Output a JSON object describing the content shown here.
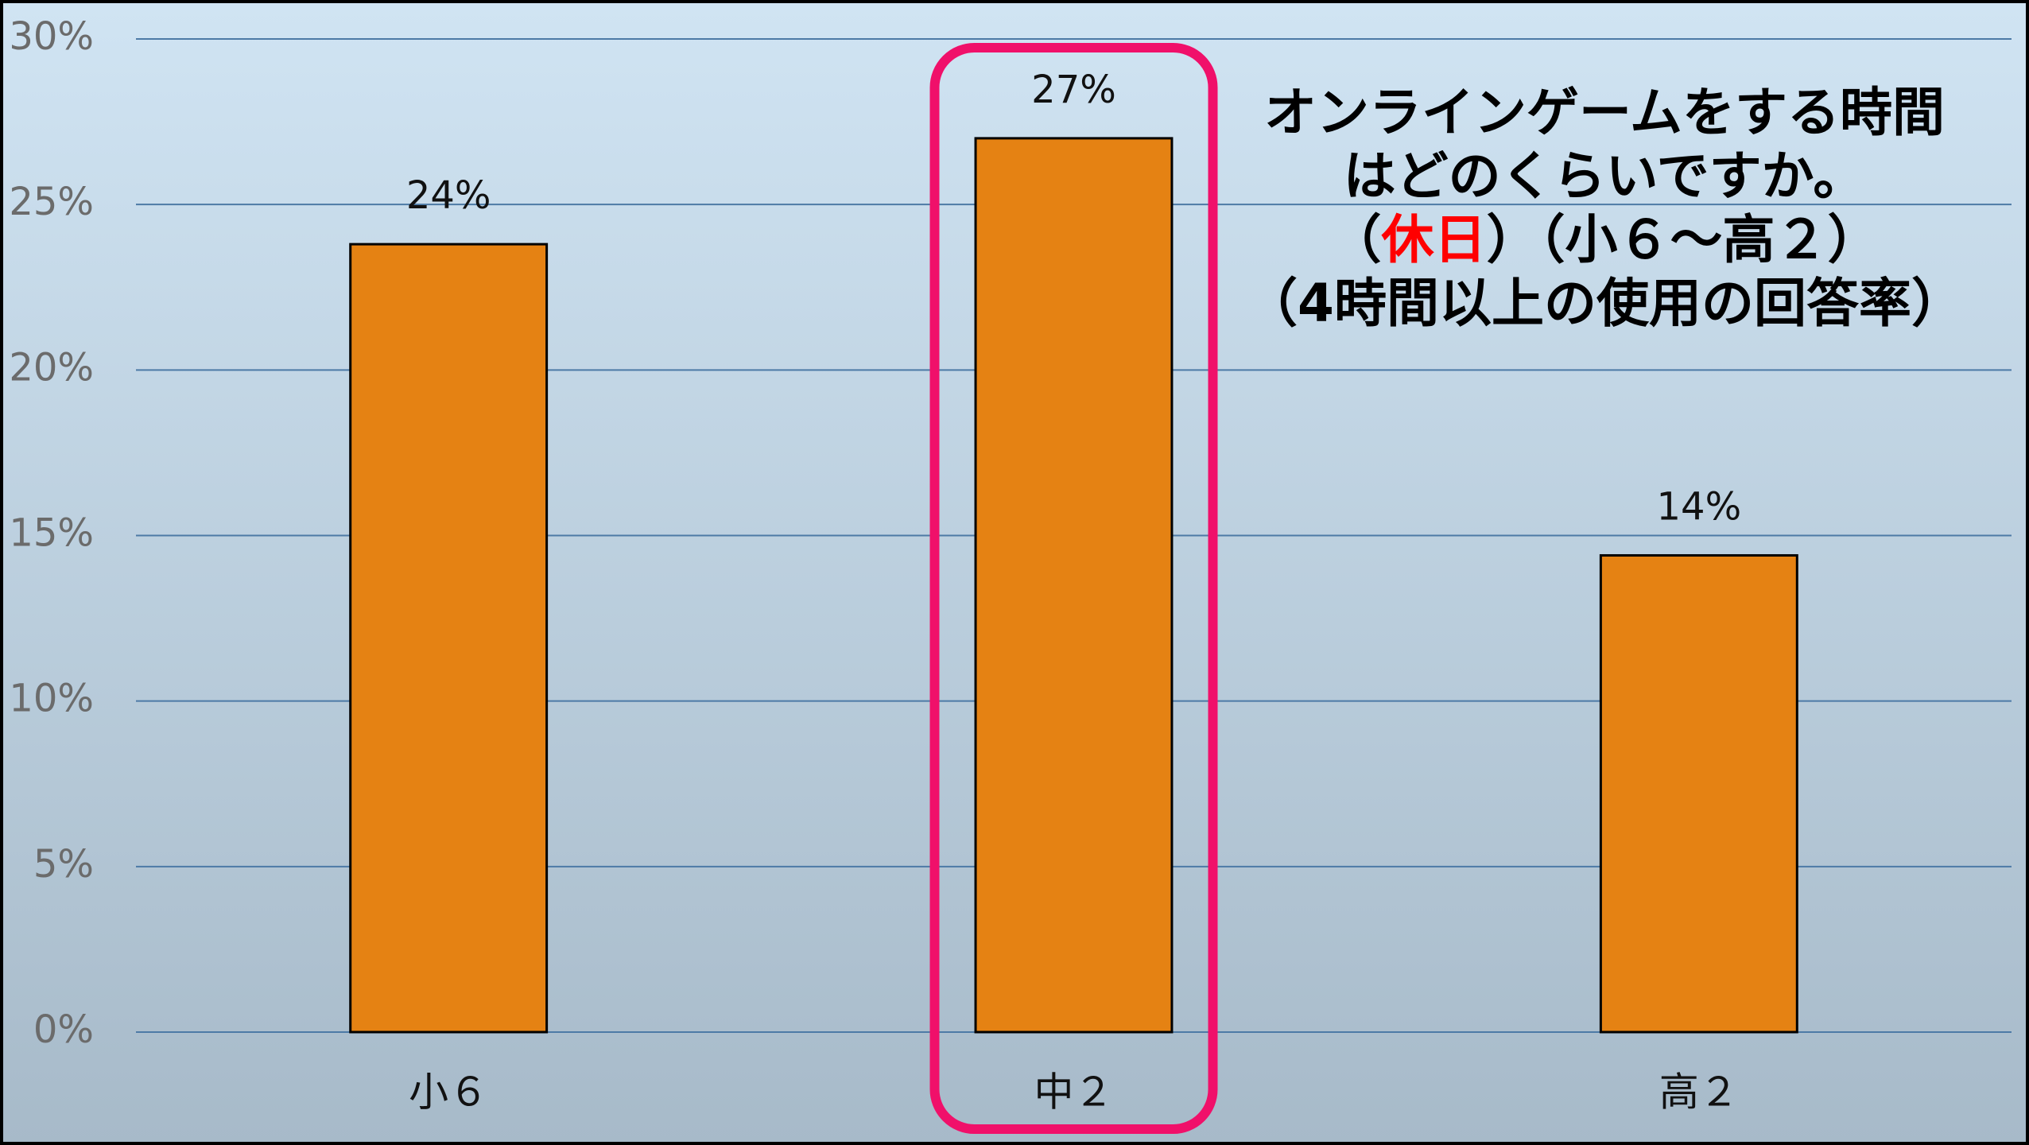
{
  "chart_data": {
    "type": "bar",
    "title": [
      "オンラインゲームをする時間",
      "はどのくらいですか。"
    ],
    "subtitle": [
      {
        "text": "（"
      },
      {
        "text": "休日",
        "color": "#ff0000"
      },
      {
        "text": "）（小６～高２）"
      }
    ],
    "note": "（4時間以上の使用の回答率）",
    "categories": [
      "小６",
      "中２",
      "高２"
    ],
    "values": [
      23.8,
      27.0,
      14.4
    ],
    "value_labels": [
      "24%",
      "27%",
      "14%"
    ],
    "color": "#e58213",
    "ylim": [
      0,
      30
    ],
    "yticks": [
      {
        "value": 0,
        "label": "0%"
      },
      {
        "value": 5,
        "label": "5%"
      },
      {
        "value": 10,
        "label": "10%"
      },
      {
        "value": 15,
        "label": "15%"
      },
      {
        "value": 20,
        "label": "20%"
      },
      {
        "value": 25,
        "label": "25%"
      },
      {
        "value": 30,
        "label": "30%"
      }
    ],
    "grid": true,
    "highlight": 1,
    "highlight_color": "#f0106a"
  }
}
